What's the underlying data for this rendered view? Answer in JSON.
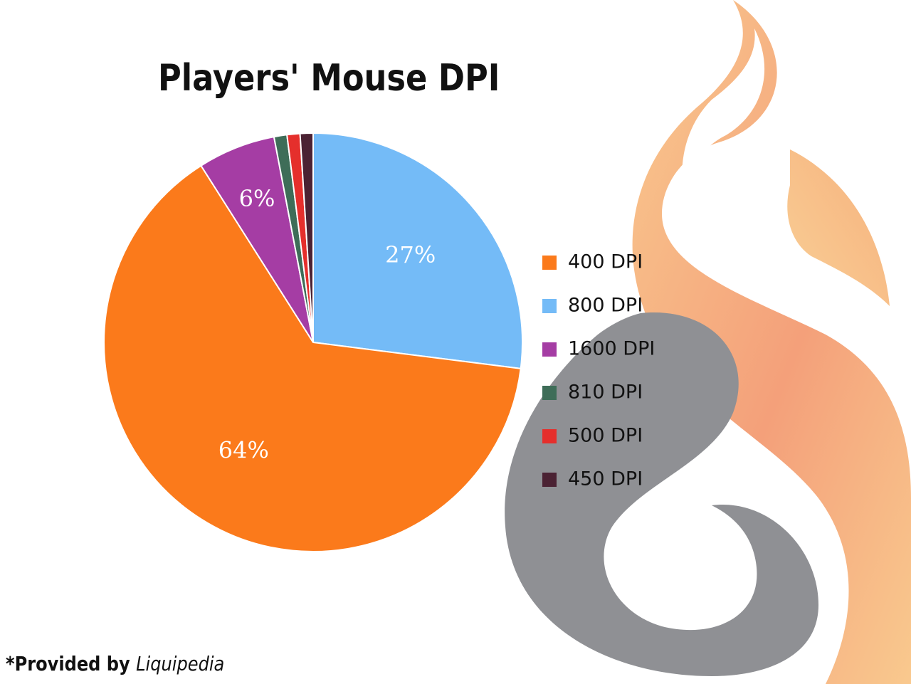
{
  "chart_data": {
    "type": "pie",
    "title": "Players' Mouse DPI",
    "slices": [
      {
        "label": "800 DPI",
        "value": 27,
        "data_label": "27%",
        "color": "#74bbf7"
      },
      {
        "label": "400 DPI",
        "value": 64,
        "data_label": "64%",
        "color": "#fb7a1b"
      },
      {
        "label": "1600 DPI",
        "value": 6,
        "data_label": "6%",
        "color": "#a53da4"
      },
      {
        "label": "810 DPI",
        "value": 1,
        "data_label": "",
        "color": "#3e6d58"
      },
      {
        "label": "500 DPI",
        "value": 1,
        "data_label": "",
        "color": "#e52f2c"
      },
      {
        "label": "450 DPI",
        "value": 1,
        "data_label": "",
        "color": "#4b2233"
      }
    ],
    "legend": {
      "placement": "right",
      "entries": [
        "400 DPI",
        "800 DPI",
        "1600 DPI",
        "810 DPI",
        "500 DPI",
        "450 DPI"
      ]
    }
  },
  "footer": {
    "prefix": "*Provided by",
    "source": "Liquipedia"
  },
  "colors": {
    "flame_light": "#f9c98e",
    "flame_mid": "#f4a07a",
    "swirl": "#8f9094"
  },
  "decor": {
    "logo": "flame-and-swirl-logo"
  }
}
